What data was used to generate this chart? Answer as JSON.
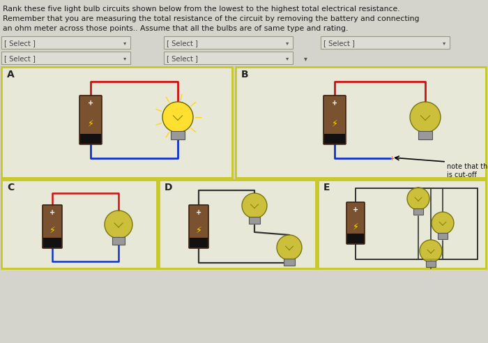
{
  "bg_color": "#d4d3cc",
  "text_color": "#1a1a1a",
  "title_lines": [
    "Rank these five light bulb circuits shown below from the lowest to the highest total electrical resistance.",
    "Remember that you are measuring the total resistance of the circuit by removing the battery and connecting",
    "an ohm meter across those points.. Assume that all the bulbs are of same type and rating."
  ],
  "note_text": "note that the blue wire\nis cut-off",
  "box_face": "#e8e8d8",
  "box_edge": "#c8c820",
  "select_face": "#ddddd5",
  "select_edge": "#999988",
  "battery_face": "#7a5230",
  "battery_dark": "#3a2010",
  "battery_black": "#111111",
  "wire_red": "#cc1111",
  "wire_blue": "#1133cc",
  "wire_dark": "#333333",
  "bulb_glow": "#ffe030",
  "bulb_dim": "#c8b820",
  "bulb_base": "#999999",
  "title_fs": 7.8,
  "select_fs": 7.2,
  "label_fs": 10,
  "figw": 7.0,
  "figh": 4.92,
  "dpi": 100
}
